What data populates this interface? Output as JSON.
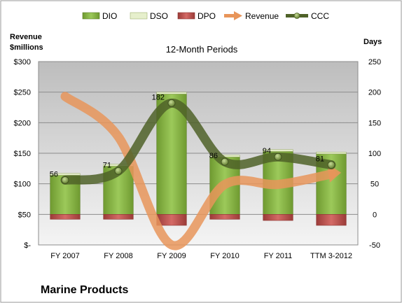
{
  "chart_data": {
    "type": "bar",
    "title": "12-Month Periods",
    "company": "Marine Products",
    "left_axis_label": [
      "Revenue",
      "$millions"
    ],
    "right_axis_label": "Days",
    "left_axis": {
      "min": 0,
      "max": 300,
      "ticks": [
        "$-",
        "$50",
        "$100",
        "$150",
        "$200",
        "$250",
        "$300"
      ]
    },
    "right_axis": {
      "min": -50,
      "max": 250,
      "ticks": [
        "-50",
        "0",
        "50",
        "100",
        "150",
        "200",
        "250"
      ]
    },
    "grid": true,
    "legend_position": "top",
    "categories": [
      "FY 2007",
      "FY 2008",
      "FY 2009",
      "FY 2010",
      "FY 2011",
      "TTM 3-2012"
    ],
    "series": [
      {
        "name": "DIO",
        "kind": "bar",
        "axis": "days",
        "color": "#8db848",
        "values": [
          64,
          79,
          197,
          94,
          103,
          99
        ]
      },
      {
        "name": "DSO",
        "kind": "bar",
        "axis": "days",
        "color": "#e6efcc",
        "values": [
          3,
          3,
          3,
          3,
          3,
          3
        ]
      },
      {
        "name": "DPO",
        "kind": "bar",
        "axis": "days",
        "color": "#c0504d",
        "values": [
          -8,
          -8,
          -18,
          -8,
          -10,
          -18
        ]
      },
      {
        "name": "Revenue",
        "kind": "line",
        "axis": "revenue",
        "color": "#e8955a",
        "values": [
          243,
          177,
          0,
          99,
          99,
          116
        ]
      },
      {
        "name": "CCC",
        "kind": "line",
        "axis": "days",
        "color": "#4f6228",
        "values": [
          56,
          71,
          182,
          86,
          94,
          81
        ]
      }
    ],
    "data_labels": [
      "56",
      "71",
      "182",
      "86",
      "94",
      "81"
    ]
  }
}
